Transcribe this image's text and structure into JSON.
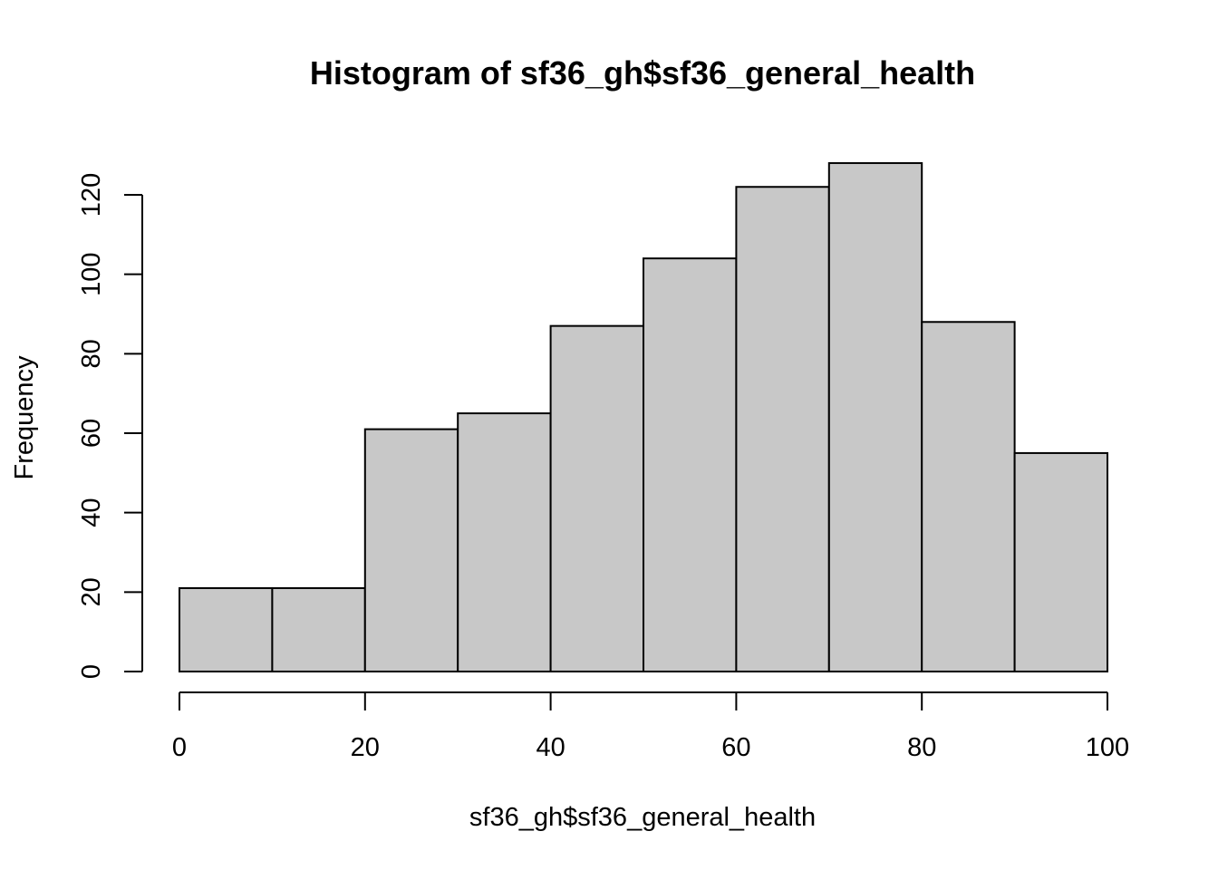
{
  "chart_data": {
    "type": "bar",
    "title": "Histogram of sf36_gh$sf36_general_health",
    "xlabel": "sf36_gh$sf36_general_health",
    "ylabel": "Frequency",
    "bins": [
      {
        "start": 0,
        "end": 10,
        "count": 21
      },
      {
        "start": 10,
        "end": 20,
        "count": 21
      },
      {
        "start": 20,
        "end": 30,
        "count": 61
      },
      {
        "start": 30,
        "end": 40,
        "count": 65
      },
      {
        "start": 40,
        "end": 50,
        "count": 87
      },
      {
        "start": 50,
        "end": 60,
        "count": 104
      },
      {
        "start": 60,
        "end": 70,
        "count": 122
      },
      {
        "start": 70,
        "end": 80,
        "count": 128
      },
      {
        "start": 80,
        "end": 90,
        "count": 88
      },
      {
        "start": 90,
        "end": 100,
        "count": 55
      }
    ],
    "xlim": [
      0,
      100
    ],
    "ylim": [
      0,
      120
    ],
    "xticks": [
      0,
      20,
      40,
      60,
      80,
      100
    ],
    "yticks": [
      0,
      20,
      40,
      60,
      80,
      100,
      120
    ],
    "bar_color": "#c8c8c8",
    "edge_color": "#000000",
    "grid": false
  }
}
